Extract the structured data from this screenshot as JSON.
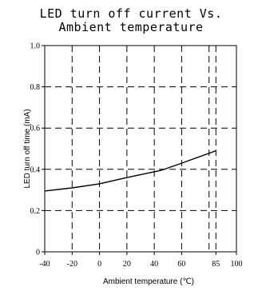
{
  "chart_data": {
    "type": "line",
    "title_lines": [
      "LED turn off current Vs.",
      "Ambient temperature"
    ],
    "xlabel": "Ambient temperature (℃)",
    "ylabel": "LED turn off time (mA)",
    "x_ticks": [
      -40,
      -20,
      0,
      20,
      40,
      60,
      85,
      100
    ],
    "x_tick_labels": [
      "-40",
      "-20",
      "0",
      "20",
      "40",
      "60",
      "85",
      "100"
    ],
    "y_ticks": [
      0,
      0.2,
      0.4,
      0.6,
      0.8,
      1.0
    ],
    "y_tick_labels": [
      "0",
      "0.2",
      "0.4",
      "0.6",
      "0.8",
      "1.0"
    ],
    "x_gridlines": [
      -20,
      0,
      20,
      40,
      60,
      80,
      85
    ],
    "y_gridlines": [
      0.2,
      0.4,
      0.6,
      0.8
    ],
    "xlim": [
      -40,
      100
    ],
    "ylim": [
      0,
      1.0
    ],
    "grid": "dashed",
    "series": [
      {
        "x": [
          -40,
          -20,
          0,
          20,
          45,
          60,
          85
        ],
        "y": [
          0.295,
          0.31,
          0.33,
          0.36,
          0.395,
          0.43,
          0.49
        ]
      }
    ]
  }
}
